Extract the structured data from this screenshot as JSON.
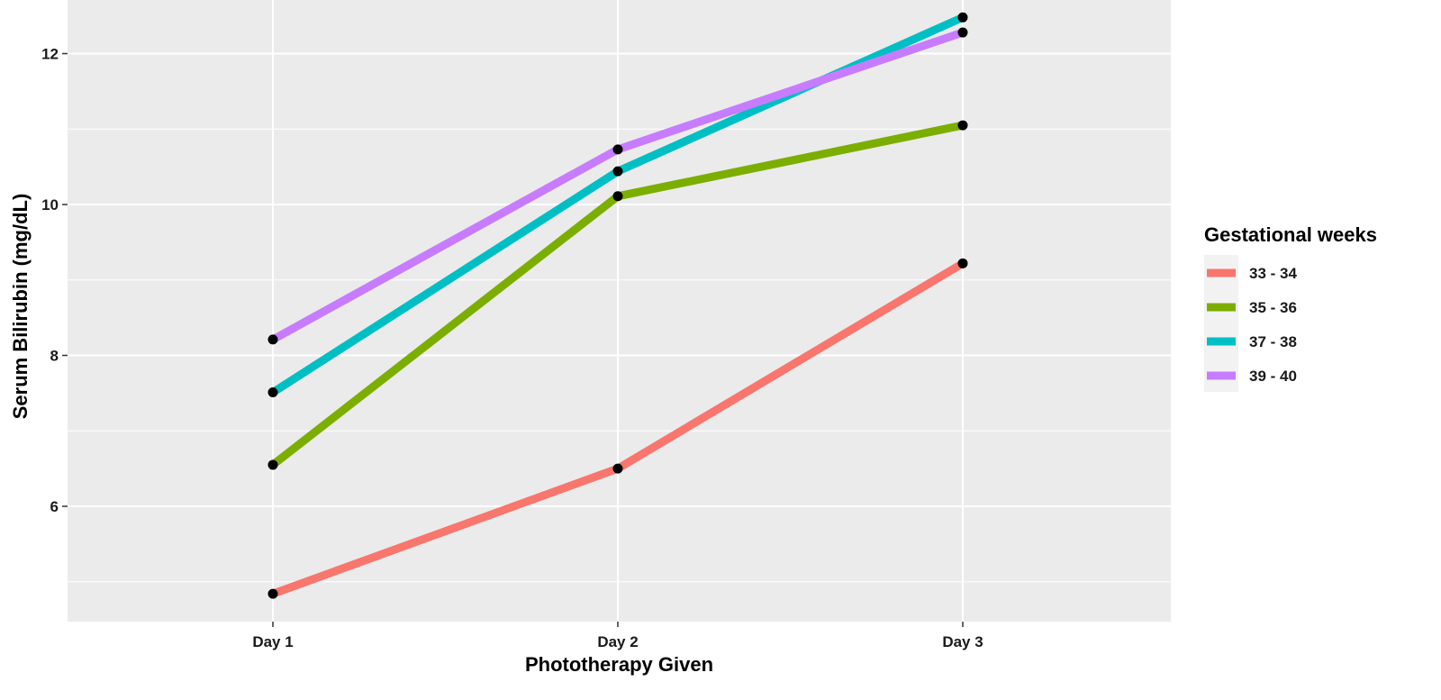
{
  "chart_data": {
    "type": "line",
    "categories": [
      "Day 1",
      "Day 2",
      "Day 3"
    ],
    "series": [
      {
        "name": "33 - 34",
        "color": "#F8766D",
        "values": [
          4.84,
          6.5,
          9.22
        ]
      },
      {
        "name": "35 - 36",
        "color": "#7CAE00",
        "values": [
          6.55,
          10.11,
          11.05
        ]
      },
      {
        "name": "37 - 38",
        "color": "#00BFC4",
        "values": [
          7.51,
          10.44,
          12.48
        ]
      },
      {
        "name": "39 - 40",
        "color": "#C77CFF",
        "values": [
          8.21,
          10.73,
          12.28
        ]
      }
    ],
    "xlabel": "Phototherapy Given",
    "ylabel": "Serum Bilirubin (mg/dL)",
    "yticks": [
      6,
      8,
      10,
      12
    ],
    "ylim": [
      4.3,
      13.3
    ],
    "legend_title": "Gestational weeks",
    "legend_position": "right",
    "grid": true,
    "point_color": "#000000",
    "panel_background": "#EBEBEB"
  }
}
